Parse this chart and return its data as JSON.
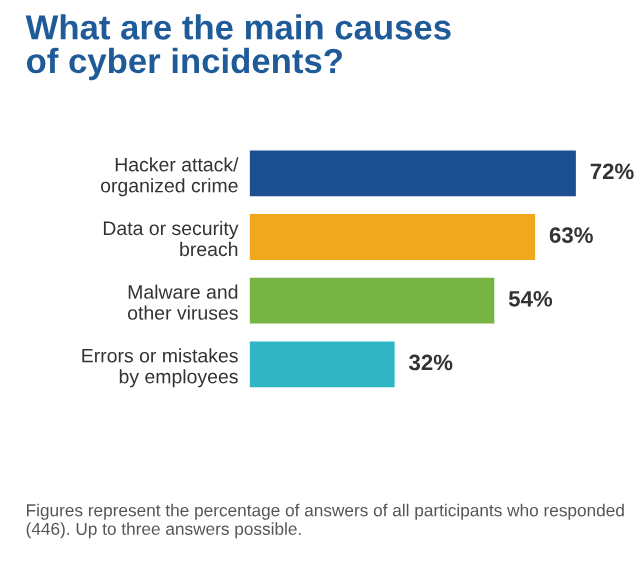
{
  "chart_data": {
    "type": "bar",
    "orientation": "horizontal",
    "title": "What are the main causes\nof cyber incidents?",
    "categories": [
      "Hacker attack/\norganized crime",
      "Data or security\nbreach",
      "Malware and\nother viruses",
      "Errors or mistakes\nby employees"
    ],
    "values": [
      72,
      63,
      54,
      32
    ],
    "colors": [
      "#1c4f8f",
      "#f0a81c",
      "#78b443",
      "#2fb5c4"
    ],
    "value_labels": [
      "72%",
      "63%",
      "54%",
      "32%"
    ],
    "annotations": [
      "Figures represent the percentage of answers of all participants who responded (446). Up to three answers possible."
    ]
  }
}
